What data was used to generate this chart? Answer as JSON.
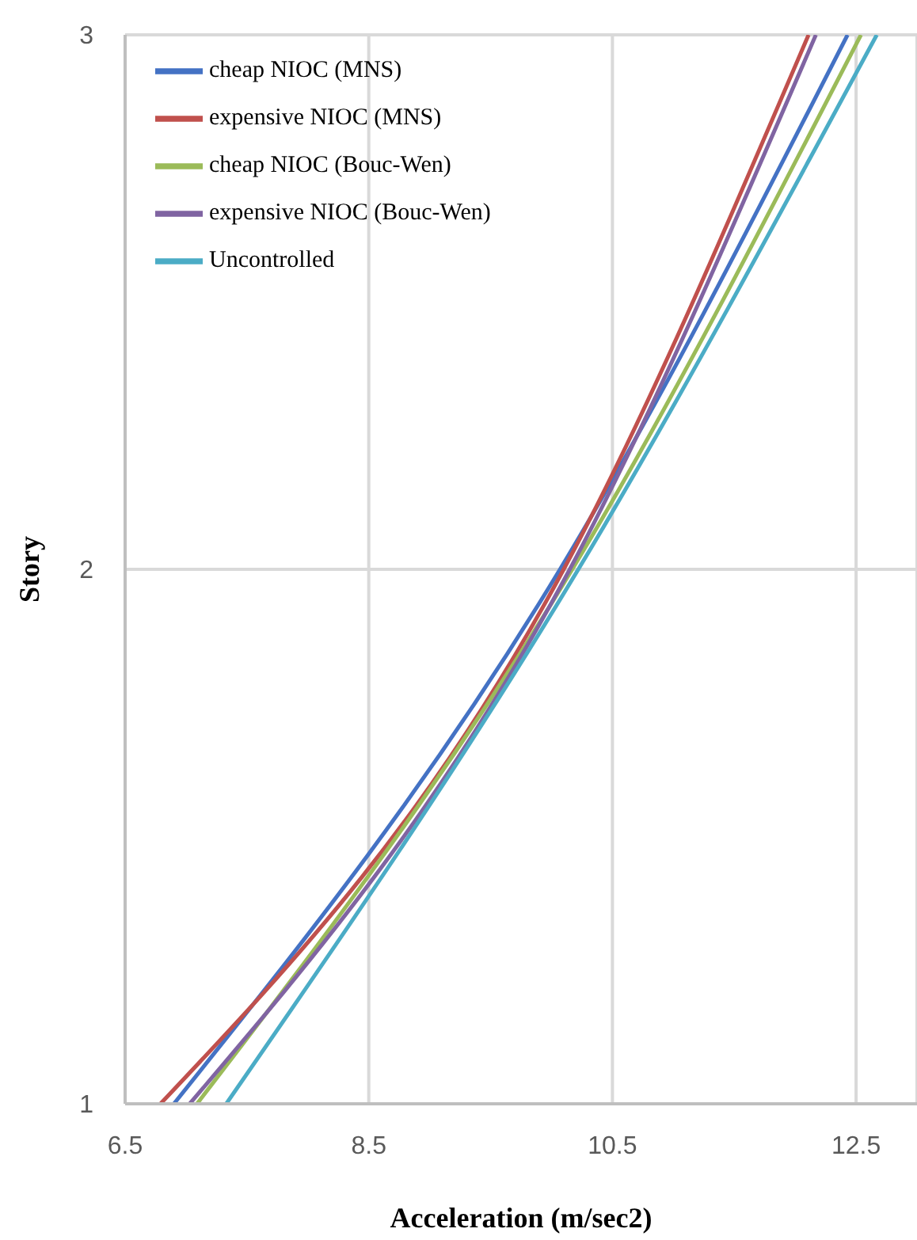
{
  "chart_data": {
    "type": "line",
    "xlabel": "Acceleration (m/sec2)",
    "ylabel": "Story",
    "xlim": [
      6.5,
      13
    ],
    "xticks": [
      6.5,
      8.5,
      10.5,
      12.5
    ],
    "ylim": [
      1,
      3
    ],
    "yticks": [
      1,
      2,
      3
    ],
    "grid": true,
    "legend": "top left",
    "marker": "none",
    "line_style": "solid",
    "series": [
      {
        "name": "cheap NIOC (MNS)",
        "color": "#4472c4",
        "x": [
          6.9,
          10.07,
          12.43
        ],
        "values": [
          1,
          2,
          3
        ]
      },
      {
        "name": "expensive NIOC (MNS)",
        "color": "#c0504d",
        "x": [
          6.79,
          10.1,
          12.11
        ],
        "values": [
          1,
          2,
          3
        ]
      },
      {
        "name": "cheap NIOC (Bouc-Wen)",
        "color": "#9bbb59",
        "x": [
          7.09,
          10.17,
          12.54
        ],
        "values": [
          1,
          2,
          3
        ]
      },
      {
        "name": "expensive NIOC (Bouc-Wen)",
        "color": "#8064a2",
        "x": [
          7.03,
          10.15,
          12.17
        ],
        "values": [
          1,
          2,
          3
        ]
      },
      {
        "name": "Uncontrolled",
        "color": "#4bacc6",
        "x": [
          7.33,
          10.22,
          12.67
        ],
        "values": [
          1,
          2,
          3
        ]
      }
    ]
  }
}
